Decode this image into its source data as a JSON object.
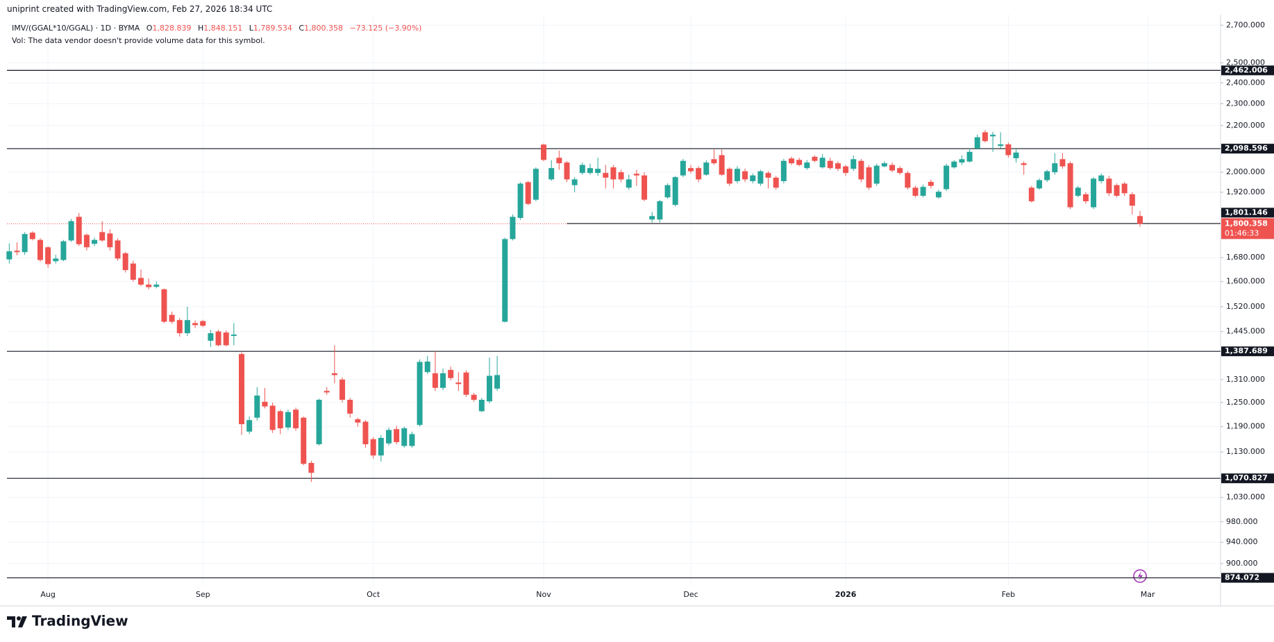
{
  "header": "uniprint created with TradingView.com, Feb 27, 2026 18:34 UTC",
  "legend": {
    "symbol": "IMV/(GGAL*10/GGAL) · 1D · BYMA",
    "open": {
      "key": "O",
      "value": "1,828.839"
    },
    "high": {
      "key": "H",
      "value": "1,848.151"
    },
    "low": {
      "key": "L",
      "value": "1,789.534"
    },
    "close": {
      "key": "C",
      "value": "1,800.358"
    },
    "change": "−73.125 (−3.90%)",
    "volume_note": "Vol: The data vendor doesn't provide volume data for this symbol."
  },
  "logo": "TradingView",
  "chart_data": {
    "type": "candlestick",
    "up_color": "#26a69a",
    "down_color": "#ef5350",
    "log_scale": true,
    "grid": true,
    "xlim": [
      -0.3,
      156.4
    ],
    "xticks": [
      {
        "value": 5,
        "label": "Aug"
      },
      {
        "value": 25,
        "label": "Sep"
      },
      {
        "value": 47,
        "label": "Oct"
      },
      {
        "value": 69,
        "label": "Nov"
      },
      {
        "value": 88,
        "label": "Dec"
      },
      {
        "value": 108,
        "label": "2026"
      },
      {
        "value": 129,
        "label": "Feb"
      },
      {
        "value": 147,
        "label": "Mar"
      }
    ],
    "ylim": [
      860,
      2759
    ],
    "yticks": [
      {
        "value": 2700,
        "label": "2,700.000"
      },
      {
        "value": 2500,
        "label": "2,500.000"
      },
      {
        "value": 2400,
        "label": "2,400.000"
      },
      {
        "value": 2300,
        "label": "2,300.000"
      },
      {
        "value": 2200,
        "label": "2,200.000"
      },
      {
        "value": 2000,
        "label": "2,000.000"
      },
      {
        "value": 1920,
        "label": "1,920.000"
      },
      {
        "value": 1680,
        "label": "1,680.000"
      },
      {
        "value": 1600,
        "label": "1,600.000"
      },
      {
        "value": 1520,
        "label": "1,520.000"
      },
      {
        "value": 1445,
        "label": "1,445.000"
      },
      {
        "value": 1310,
        "label": "1,310.000"
      },
      {
        "value": 1250,
        "label": "1,250.000"
      },
      {
        "value": 1190,
        "label": "1,190.000"
      },
      {
        "value": 1130,
        "label": "1,130.000"
      },
      {
        "value": 1030,
        "label": "1,030.000"
      },
      {
        "value": 980,
        "label": "980.000"
      },
      {
        "value": 940,
        "label": "940.000"
      },
      {
        "value": 900,
        "label": "900.000"
      }
    ],
    "levels": [
      {
        "value": 2462.006,
        "label": "2,462.006"
      },
      {
        "value": 2098.596,
        "label": "2,098.596"
      },
      {
        "value": 1801.146,
        "label": "1,801.146",
        "start_index": 72
      },
      {
        "value": 1387.689,
        "label": "1,387.689"
      },
      {
        "value": 1070.827,
        "label": "1,070.827"
      },
      {
        "value": 874.072,
        "label": "874.072"
      }
    ],
    "last_price": {
      "value": 1800.358,
      "label": "1,800.358",
      "countdown": "01:46:33"
    },
    "open": [
      1674,
      1704,
      1699,
      1768,
      1742,
      1716,
      1668,
      1672,
      1740,
      1826,
      1760,
      1728,
      1770,
      1765,
      1740,
      1695,
      1660,
      1612,
      1590,
      1583,
      1575,
      1495,
      1479,
      1440,
      1470,
      1476,
      1418,
      1445,
      1442,
      1432,
      1380,
      1178,
      1212,
      1252,
      1242,
      1228,
      1188,
      1232,
      1212,
      1105,
      1148,
      1280,
      1327,
      1310,
      1257,
      1208,
      1202,
      1160,
      1122,
      1150,
      1184,
      1144,
      1144,
      1194,
      1330,
      1327,
      1288,
      1336,
      1302,
      1329,
      1270,
      1228,
      1253,
      1286,
      1474,
      1745,
      1822,
      1960,
      1891,
      2116,
      1971,
      2060,
      2040,
      1948,
      1997,
      1997,
      1997,
      1997,
      2020,
      2000,
      1938,
      1994,
      1987,
      1816,
      1816,
      1900,
      1871,
      1987,
      2017,
      2017,
      1990,
      2054,
      2071,
      2014,
      1964,
      2004,
      1964,
      1954,
      1997,
      1978,
      1964,
      2057,
      2051,
      2017,
      2064,
      2020,
      2047,
      2037,
      2024,
      2014,
      2047,
      2020,
      1954,
      2024,
      2030,
      2017,
      1997,
      1938,
      1906,
      1961,
      1900,
      1932,
      2020,
      2040,
      2044,
      2099,
      2170,
      2152,
      2110,
      2117,
      2058,
      2037,
      1938,
      1935,
      1968,
      2000,
      2054,
      2037,
      1906,
      1912,
      1862,
      1964,
      1974,
      1948,
      1954,
      1912,
      1828.839
    ],
    "high": [
      1730,
      1733,
      1770,
      1773,
      1748,
      1720,
      1690,
      1742,
      1818,
      1840,
      1765,
      1750,
      1810,
      1780,
      1748,
      1700,
      1670,
      1640,
      1610,
      1600,
      1578,
      1505,
      1485,
      1520,
      1478,
      1480,
      1450,
      1450,
      1448,
      1470,
      1385,
      1215,
      1290,
      1288,
      1250,
      1232,
      1232,
      1237,
      1215,
      1110,
      1260,
      1290,
      1405,
      1316,
      1262,
      1212,
      1206,
      1165,
      1170,
      1188,
      1192,
      1190,
      1178,
      1365,
      1375,
      1388,
      1340,
      1345,
      1330,
      1335,
      1275,
      1262,
      1370,
      1375,
      1750,
      1835,
      1960,
      1965,
      2020,
      2120,
      2050,
      2090,
      2046,
      1980,
      2040,
      2035,
      2060,
      2030,
      2030,
      2010,
      1990,
      2010,
      2000,
      1845,
      1890,
      1955,
      1985,
      2055,
      2030,
      2025,
      2050,
      2095,
      2095,
      2020,
      2025,
      2015,
      1995,
      2010,
      2005,
      1985,
      2055,
      2065,
      2060,
      2050,
      2070,
      2075,
      2060,
      2045,
      2030,
      2070,
      2055,
      2030,
      2035,
      2045,
      2040,
      2025,
      2005,
      1945,
      1950,
      1970,
      1930,
      2035,
      2050,
      2070,
      2100,
      2160,
      2180,
      2172,
      2170,
      2125,
      2095,
      2045,
      1945,
      1975,
      2010,
      2080,
      2080,
      2045,
      1945,
      1920,
      1980,
      1995,
      1985,
      1955,
      1960,
      1920,
      1848.151
    ],
    "low": [
      1660,
      1688,
      1690,
      1740,
      1666,
      1646,
      1660,
      1668,
      1735,
      1720,
      1705,
      1720,
      1735,
      1705,
      1670,
      1630,
      1600,
      1585,
      1575,
      1578,
      1470,
      1468,
      1430,
      1432,
      1455,
      1458,
      1400,
      1402,
      1402,
      1405,
      1170,
      1172,
      1205,
      1235,
      1175,
      1172,
      1182,
      1180,
      1100,
      1063,
      1145,
      1270,
      1300,
      1250,
      1212,
      1190,
      1140,
      1115,
      1108,
      1145,
      1148,
      1140,
      1140,
      1190,
      1325,
      1280,
      1282,
      1308,
      1280,
      1265,
      1252,
      1226,
      1248,
      1280,
      1472,
      1740,
      1815,
      1870,
      1885,
      2045,
      1965,
      2010,
      1960,
      1920,
      1990,
      1990,
      1985,
      1935,
      1935,
      1960,
      1930,
      1945,
      1885,
      1805,
      1805,
      1895,
      1865,
      1980,
      1995,
      1960,
      1985,
      2030,
      1985,
      1945,
      1955,
      1960,
      1955,
      1945,
      1935,
      1930,
      1955,
      2030,
      2025,
      2010,
      2040,
      2015,
      2010,
      2005,
      1985,
      2005,
      1960,
      1930,
      1945,
      2020,
      2000,
      1990,
      1930,
      1900,
      1900,
      1935,
      1895,
      1925,
      2015,
      2030,
      2040,
      2095,
      2125,
      2085,
      2100,
      2060,
      2040,
      1990,
      1880,
      1930,
      1960,
      1990,
      2015,
      1855,
      1900,
      1875,
      1855,
      1955,
      1905,
      1900,
      1905,
      1835,
      1789.534
    ],
    "close": [
      1702,
      1699,
      1763,
      1745,
      1672,
      1658,
      1677,
      1737,
      1810,
      1727,
      1716,
      1742,
      1740,
      1716,
      1677,
      1638,
      1606,
      1590,
      1582,
      1590,
      1474,
      1474,
      1440,
      1479,
      1464,
      1462,
      1440,
      1405,
      1405,
      1436,
      1196,
      1206,
      1268,
      1240,
      1182,
      1186,
      1226,
      1186,
      1103,
      1083,
      1257,
      1276,
      1322,
      1257,
      1222,
      1200,
      1148,
      1122,
      1163,
      1182,
      1153,
      1186,
      1172,
      1358,
      1359,
      1288,
      1327,
      1314,
      1298,
      1270,
      1257,
      1257,
      1320,
      1322,
      1745,
      1826,
      1954,
      1875,
      2014,
      2051,
      2017,
      2037,
      1971,
      1971,
      2030,
      2017,
      2014,
      1978,
      1971,
      1971,
      1971,
      1987,
      1891,
      1829,
      1885,
      1948,
      1980,
      2047,
      2004,
      1971,
      2040,
      2037,
      1990,
      1954,
      2014,
      1971,
      1987,
      2004,
      1978,
      1938,
      2047,
      2037,
      2030,
      2040,
      2047,
      2060,
      2017,
      2014,
      1997,
      2054,
      1971,
      1938,
      2027,
      2037,
      2007,
      1997,
      1938,
      1906,
      1941,
      1945,
      1922,
      2027,
      2044,
      2054,
      2085,
      2148,
      2131,
      2159,
      2117,
      2071,
      2082,
      2030,
      1885,
      1968,
      2004,
      2037,
      2024,
      1862,
      1938,
      1885,
      1974,
      1987,
      1916,
      1906,
      1916,
      1868,
      1800.358
    ]
  }
}
